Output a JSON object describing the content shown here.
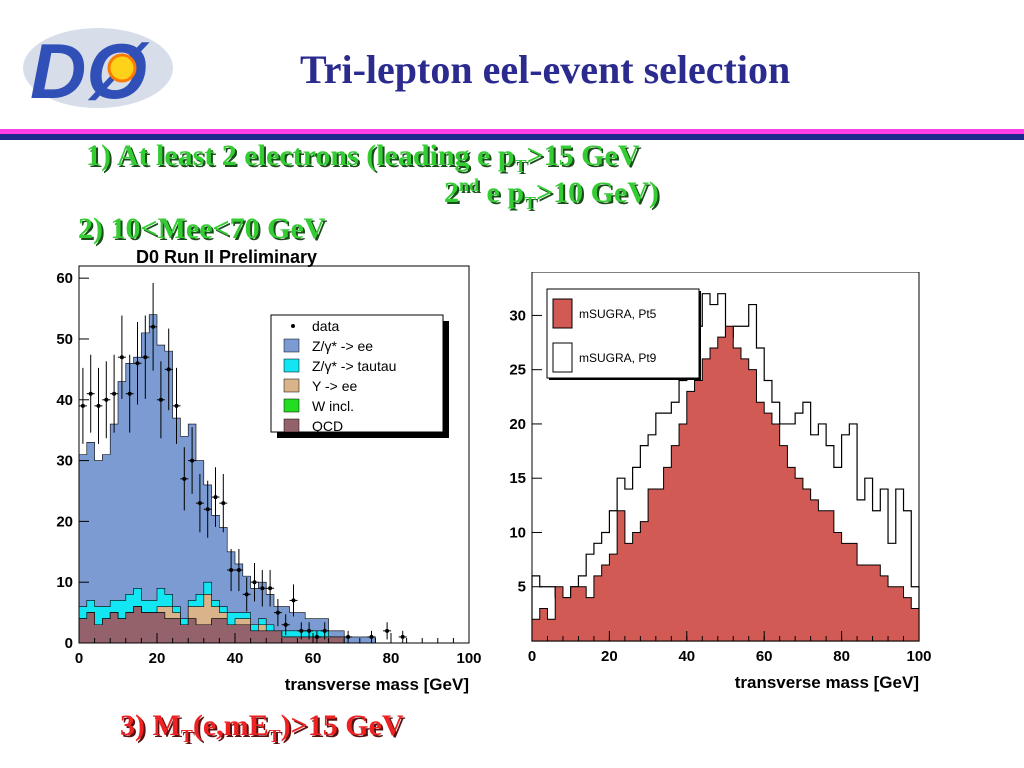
{
  "slide": {
    "title": "Tri-lepton eel-event selection",
    "criterion1_line1": {
      "prefix": "1)  At least 2 electrons (leading e p",
      "sub": "T",
      "suffix": ">15  GeV"
    },
    "criterion1_line2": {
      "prefix": "2",
      "sup": "nd",
      "mid": " e p",
      "sub": "T",
      "suffix": ">10 GeV)"
    },
    "criterion2": "2)   10<Mee<70 GeV",
    "criterion3": {
      "prefix": "3)  M",
      "sub1": "T",
      "mid": "(e,mE",
      "sub2": "T",
      "suffix": ")>15 GeV"
    },
    "logo_text": "DØ"
  },
  "colors": {
    "title": "#2b2b8f",
    "criteria": "#33cc33",
    "criterion3": "#ee2222",
    "pink_bar": "#ff3ee8",
    "navy_bar": "#1c2a8c",
    "zee": "#7b9bd2",
    "ztautau": "#11e6f2",
    "upsilon": "#d9b48a",
    "w": "#22dd22",
    "qcd": "#94626b",
    "sugra_pt5": "#d15a54"
  },
  "chart_data": [
    {
      "type": "bar",
      "title": "D0 Run II Preliminary",
      "xlabel": "transverse mass [GeV]",
      "ylabel": "",
      "xlim": [
        0,
        100
      ],
      "ylim": [
        0,
        62
      ],
      "xticks": [
        0,
        20,
        40,
        60,
        80,
        100
      ],
      "yticks": [
        0,
        10,
        20,
        30,
        40,
        50,
        60
      ],
      "bin_width": 2,
      "legend_position": "top-right",
      "legend": [
        "data",
        "Z/γ* -> ee",
        "Z/γ* -> tautau",
        "Y -> ee",
        "W incl.",
        "QCD"
      ],
      "stack_order": [
        "QCD",
        "W incl.",
        "Y -> ee",
        "Z/γ* -> tautau",
        "Z/γ* -> ee"
      ],
      "series": [
        {
          "name": "QCD",
          "values": [
            4,
            5,
            3,
            4,
            5,
            4,
            5,
            6,
            5,
            5,
            5,
            4,
            4,
            3,
            4,
            3,
            3,
            4,
            4,
            3,
            3,
            3,
            2,
            2,
            2,
            2,
            1,
            1,
            1,
            1,
            1,
            1,
            1,
            1,
            0,
            0,
            0,
            0,
            0,
            0,
            0,
            0,
            0,
            0,
            0,
            0,
            0,
            0,
            0,
            0
          ]
        },
        {
          "name": "W incl.",
          "values": [
            0,
            0,
            0,
            0,
            0,
            0,
            0,
            0,
            0,
            0,
            0,
            0,
            0,
            0,
            0,
            0,
            0,
            0,
            0,
            0,
            0,
            0,
            0,
            0,
            0,
            0,
            0,
            0,
            0,
            0,
            0,
            0,
            0,
            0,
            0,
            0,
            0,
            0,
            0,
            0,
            0,
            0,
            0,
            0,
            0,
            0,
            0,
            0,
            0,
            0
          ]
        },
        {
          "name": "Y -> ee",
          "values": [
            0,
            0,
            0,
            0,
            0,
            0,
            0,
            0,
            0,
            0,
            1,
            2,
            1,
            0,
            2,
            3,
            5,
            2,
            1,
            0,
            1,
            1,
            0,
            1,
            0,
            0,
            0,
            0,
            0,
            0,
            0,
            0,
            0,
            0,
            0,
            0,
            0,
            0,
            0,
            0,
            0,
            0,
            0,
            0,
            0,
            0,
            0,
            0,
            0,
            0
          ]
        },
        {
          "name": "Z/γ* -> tautau",
          "values": [
            2,
            2,
            3,
            2,
            2,
            3,
            3,
            3,
            2,
            2,
            3,
            2,
            1,
            1,
            1,
            2,
            2,
            1,
            1,
            2,
            1,
            1,
            1,
            1,
            1,
            0,
            1,
            1,
            1,
            1,
            1,
            1,
            0,
            0,
            0,
            0,
            0,
            0,
            0,
            0,
            0,
            0,
            0,
            0,
            0,
            0,
            0,
            0,
            0,
            0
          ]
        },
        {
          "name": "Z/γ* -> ee",
          "values": [
            25,
            26,
            24,
            25,
            29,
            36,
            38,
            38,
            44,
            47,
            40,
            40,
            31,
            30,
            29,
            22,
            16,
            14,
            13,
            10,
            8,
            6,
            6,
            6,
            5,
            4,
            4,
            3,
            3,
            2,
            2,
            2,
            1,
            1,
            1,
            1,
            1,
            1,
            0,
            0,
            0,
            0,
            0,
            0,
            0,
            0,
            0,
            0,
            0,
            0
          ]
        },
        {
          "name": "data",
          "values": [
            39,
            41,
            39,
            40,
            41,
            47,
            41,
            46,
            47,
            52,
            40,
            45,
            39,
            27,
            30,
            23,
            22,
            24,
            23,
            12,
            12,
            8,
            10,
            9,
            9,
            5,
            3,
            7,
            2,
            2,
            1,
            2,
            0,
            0,
            1,
            0,
            0,
            1,
            0,
            2,
            0,
            1,
            0,
            0,
            0,
            0,
            0,
            0,
            0,
            0
          ]
        }
      ]
    },
    {
      "type": "bar",
      "title": "",
      "xlabel": "transverse mass [GeV]",
      "ylabel": "",
      "xlim": [
        0,
        100
      ],
      "ylim": [
        0,
        34
      ],
      "xticks": [
        0,
        20,
        40,
        60,
        80,
        100
      ],
      "yticks": [
        5,
        10,
        15,
        20,
        25,
        30
      ],
      "bin_width": 2,
      "legend_position": "top-left",
      "legend": [
        "mSUGRA, Pt5",
        "mSUGRA, Pt9"
      ],
      "series": [
        {
          "name": "mSUGRA, Pt5",
          "values": [
            2,
            3,
            2,
            5,
            4,
            5,
            5,
            4,
            6,
            7,
            8,
            12,
            9,
            10,
            11,
            14,
            14,
            16,
            18,
            20,
            23,
            24,
            26,
            27,
            28,
            29,
            27,
            26,
            25,
            22,
            21,
            20,
            18,
            16,
            15,
            14,
            13,
            12,
            12,
            10,
            9,
            9,
            7,
            7,
            7,
            6,
            5,
            5,
            4,
            3
          ]
        },
        {
          "name": "mSUGRA, Pt9",
          "values": [
            6,
            5,
            5,
            4,
            4,
            5,
            6,
            8,
            9,
            10,
            12,
            15,
            14,
            16,
            18,
            19,
            21,
            21,
            22,
            24,
            30,
            29,
            32,
            31,
            32,
            28,
            29,
            29,
            31,
            27,
            24,
            22,
            20,
            20,
            21,
            22,
            19,
            20,
            18,
            16,
            19,
            20,
            13,
            15,
            12,
            14,
            9,
            14,
            12,
            5
          ]
        }
      ]
    }
  ]
}
